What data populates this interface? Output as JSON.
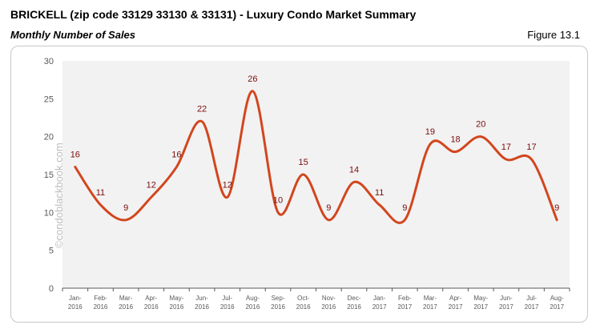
{
  "header": {
    "title": "BRICKELL (zip code 33129 33130 & 33131) - Luxury Condo Market Summary",
    "subtitle": "Monthly Number of Sales",
    "figure": "Figure 13.1"
  },
  "watermark": "©condoblackbook.com",
  "chart_data": {
    "type": "line",
    "title": "",
    "xlabel": "",
    "ylabel": "",
    "ylim": [
      0,
      30
    ],
    "yticks": [
      0,
      5,
      10,
      15,
      20,
      25,
      30
    ],
    "grid": false,
    "smoothed": true,
    "line_color": "#d2461e",
    "label_color": "#7b0c0c",
    "plot_background": "#f2f2f2",
    "categories": [
      [
        "Jan-",
        "2016"
      ],
      [
        "Feb-",
        "2016"
      ],
      [
        "Mar-",
        "2016"
      ],
      [
        "Apr-",
        "2016"
      ],
      [
        "May-",
        "2016"
      ],
      [
        "Jun-",
        "2016"
      ],
      [
        "Jul-",
        "2016"
      ],
      [
        "Aug-",
        "2016"
      ],
      [
        "Sep-",
        "2016"
      ],
      [
        "Oct-",
        "2016"
      ],
      [
        "Nov-",
        "2016"
      ],
      [
        "Dec-",
        "2016"
      ],
      [
        "Jan-",
        "2017"
      ],
      [
        "Feb-",
        "2017"
      ],
      [
        "Mar-",
        "2017"
      ],
      [
        "Apr-",
        "2017"
      ],
      [
        "May-",
        "2017"
      ],
      [
        "Jun-",
        "2017"
      ],
      [
        "Jul-",
        "2017"
      ],
      [
        "Aug-",
        "2017"
      ]
    ],
    "values": [
      16,
      11,
      9,
      12,
      16,
      22,
      12,
      26,
      10,
      15,
      9,
      14,
      11,
      9,
      19,
      18,
      20,
      17,
      17,
      9
    ]
  }
}
